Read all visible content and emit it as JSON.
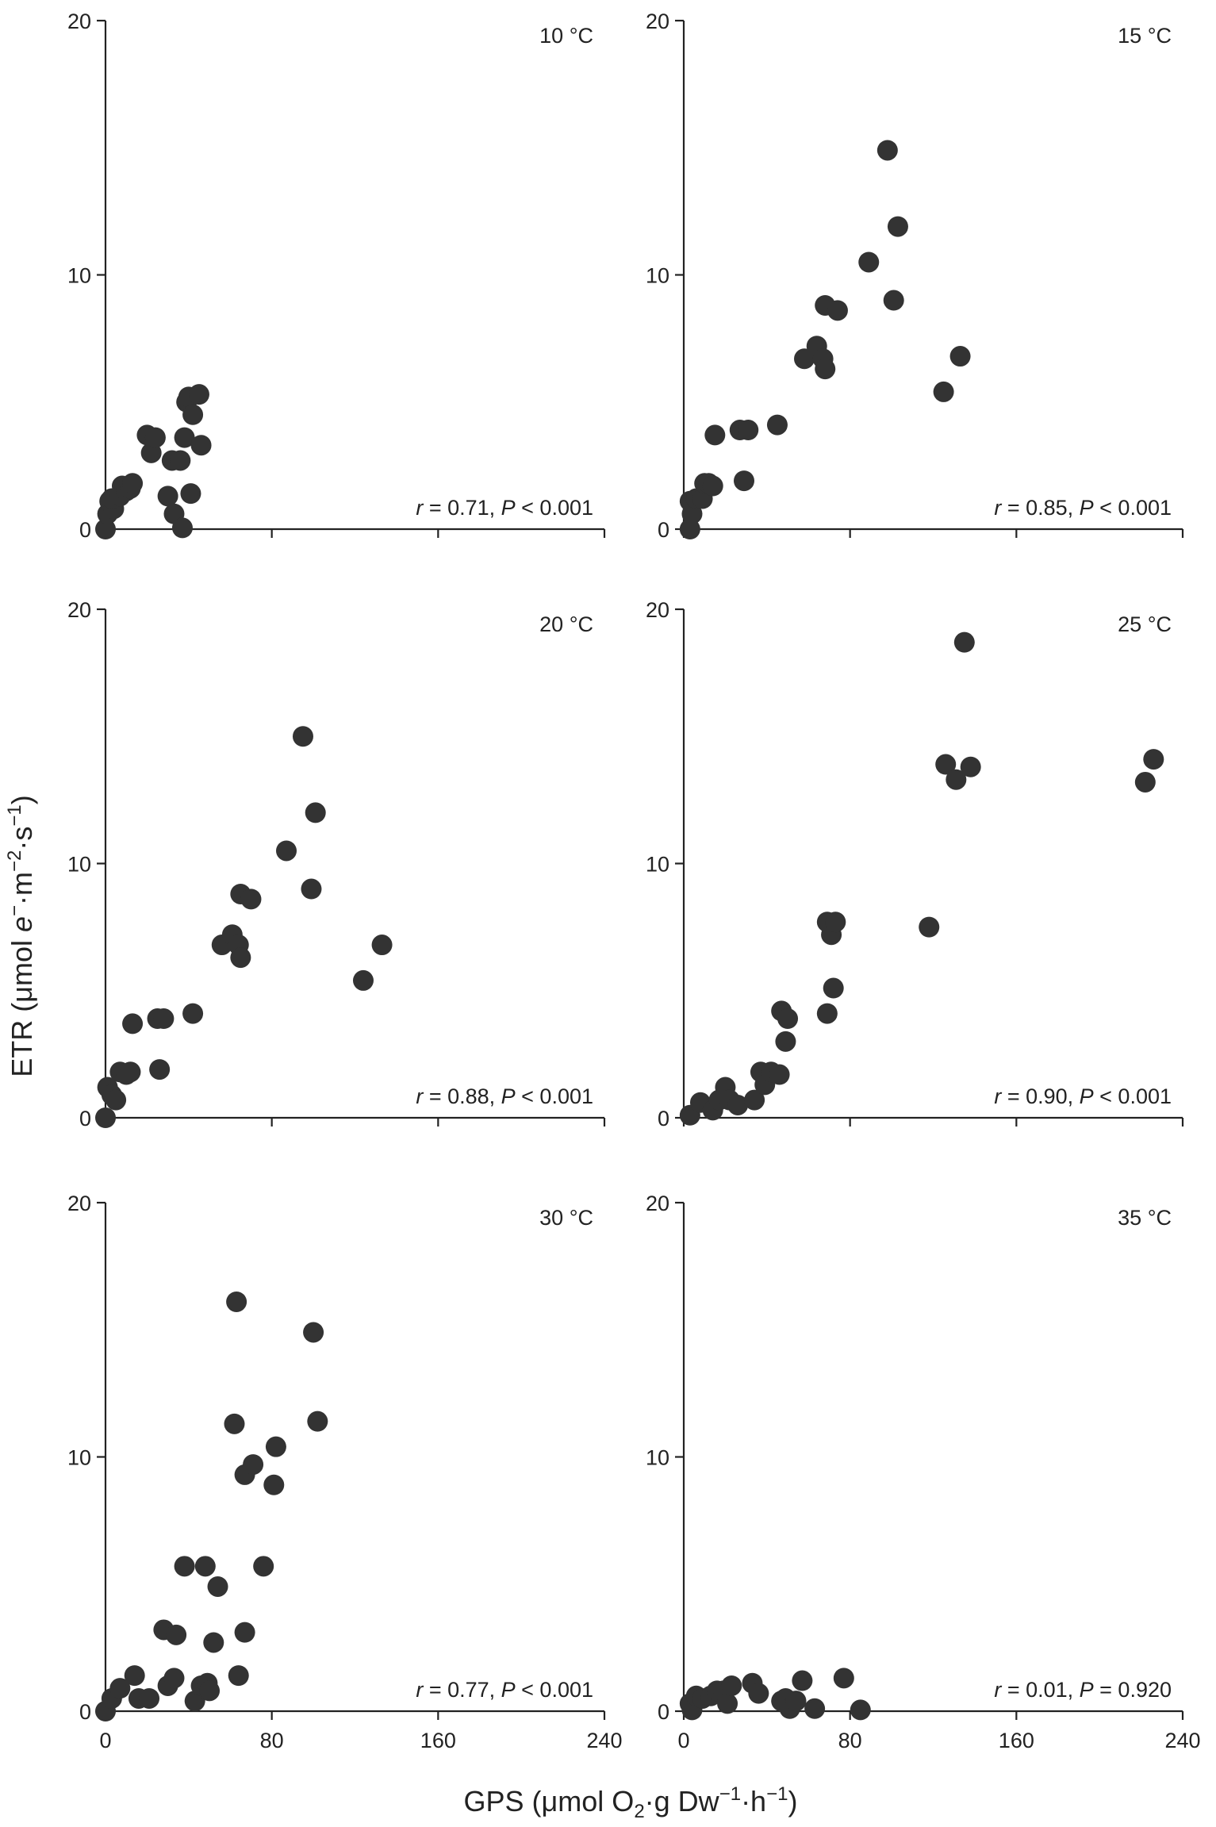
{
  "chart_data": {
    "type": "scatter",
    "layout": "3x2 grid",
    "shared_xlabel": {
      "main": "GPS (μmol O",
      "sub": "2",
      "mid": "·g Dw",
      "sup1": "−1",
      "mid2": "·h",
      "sup2": "−1",
      "end": ")"
    },
    "shared_ylabel": {
      "main": "ETR (μmol ",
      "italic": "e",
      "sup0": "−",
      "mid": "·m",
      "sup1": "−2",
      "mid2": "·s",
      "sup2": "−1",
      "end": ")"
    },
    "xlim": [
      0,
      240
    ],
    "ylim": [
      0,
      20
    ],
    "xticks": [
      0,
      80,
      160,
      240
    ],
    "yticks": [
      0,
      10,
      20
    ],
    "panels": [
      {
        "title": "10 °C",
        "stat": {
          "r_label": "r",
          "r_text": " = 0.71, ",
          "p_label": "P",
          "p_text": " < 0.001"
        },
        "points": [
          [
            0,
            0
          ],
          [
            1,
            0.6
          ],
          [
            2,
            1.1
          ],
          [
            4,
            0.8
          ],
          [
            3,
            1.2
          ],
          [
            7,
            1.3
          ],
          [
            8,
            1.7
          ],
          [
            10,
            1.5
          ],
          [
            12,
            1.6
          ],
          [
            13,
            1.8
          ],
          [
            20,
            3.7
          ],
          [
            22,
            3.0
          ],
          [
            24,
            3.6
          ],
          [
            30,
            1.3
          ],
          [
            32,
            2.7
          ],
          [
            33,
            0.6
          ],
          [
            36,
            2.7
          ],
          [
            37,
            0.05
          ],
          [
            38,
            3.6
          ],
          [
            39,
            5.0
          ],
          [
            40,
            5.2
          ],
          [
            41,
            1.4
          ],
          [
            42,
            4.5
          ],
          [
            45,
            5.3
          ],
          [
            46,
            3.3
          ]
        ]
      },
      {
        "title": "15 °C",
        "stat": {
          "r_label": "r",
          "r_text": " = 0.85, ",
          "p_label": "P",
          "p_text": " < 0.001"
        },
        "points": [
          [
            3,
            0
          ],
          [
            3,
            1.1
          ],
          [
            4,
            0.6
          ],
          [
            6,
            1.2
          ],
          [
            9,
            1.2
          ],
          [
            10,
            1.8
          ],
          [
            12,
            1.8
          ],
          [
            15,
            3.7
          ],
          [
            14,
            1.7
          ],
          [
            27,
            3.9
          ],
          [
            29,
            1.9
          ],
          [
            31,
            3.9
          ],
          [
            45,
            4.1
          ],
          [
            58,
            6.7
          ],
          [
            64,
            7.2
          ],
          [
            67,
            6.7
          ],
          [
            68,
            6.3
          ],
          [
            68,
            8.8
          ],
          [
            74,
            8.6
          ],
          [
            89,
            10.5
          ],
          [
            98,
            14.9
          ],
          [
            101,
            9.0
          ],
          [
            103,
            11.9
          ],
          [
            125,
            5.4
          ],
          [
            133,
            6.8
          ]
        ]
      },
      {
        "title": "20 °C",
        "stat": {
          "r_label": "r",
          "r_text": " = 0.88, ",
          "p_label": "P",
          "p_text": " < 0.001"
        },
        "points": [
          [
            0,
            0
          ],
          [
            1,
            1.2
          ],
          [
            3,
            0.9
          ],
          [
            5,
            0.7
          ],
          [
            7,
            1.8
          ],
          [
            10,
            1.7
          ],
          [
            12,
            1.8
          ],
          [
            13,
            3.7
          ],
          [
            25,
            3.9
          ],
          [
            26,
            1.9
          ],
          [
            28,
            3.9
          ],
          [
            42,
            4.1
          ],
          [
            56,
            6.8
          ],
          [
            61,
            7.2
          ],
          [
            64,
            6.8
          ],
          [
            65,
            6.3
          ],
          [
            65,
            8.8
          ],
          [
            70,
            8.6
          ],
          [
            87,
            10.5
          ],
          [
            95,
            15.0
          ],
          [
            99,
            9.0
          ],
          [
            101,
            12.0
          ],
          [
            124,
            5.4
          ],
          [
            133,
            6.8
          ]
        ]
      },
      {
        "title": "25 °C",
        "stat": {
          "r_label": "r",
          "r_text": " = 0.90, ",
          "p_label": "P",
          "p_text": " < 0.001"
        },
        "points": [
          [
            3,
            0.1
          ],
          [
            8,
            0.6
          ],
          [
            14,
            0.3
          ],
          [
            17,
            0.7
          ],
          [
            20,
            1.2
          ],
          [
            22,
            0.7
          ],
          [
            26,
            0.5
          ],
          [
            34,
            0.7
          ],
          [
            37,
            1.8
          ],
          [
            39,
            1.3
          ],
          [
            42,
            1.8
          ],
          [
            46,
            1.7
          ],
          [
            47,
            4.2
          ],
          [
            49,
            3.0
          ],
          [
            50,
            3.9
          ],
          [
            69,
            4.1
          ],
          [
            69,
            7.7
          ],
          [
            71,
            7.2
          ],
          [
            72,
            5.1
          ],
          [
            73,
            7.7
          ],
          [
            118,
            7.5
          ],
          [
            126,
            13.9
          ],
          [
            131,
            13.3
          ],
          [
            135,
            18.7
          ],
          [
            138,
            13.8
          ],
          [
            222,
            13.2
          ],
          [
            226,
            14.1
          ]
        ]
      },
      {
        "title": "30 °C",
        "stat": {
          "r_label": "r",
          "r_text": " = 0.77, ",
          "p_label": "P",
          "p_text": " < 0.001"
        },
        "points": [
          [
            0,
            0
          ],
          [
            3,
            0.5
          ],
          [
            7,
            0.9
          ],
          [
            14,
            1.4
          ],
          [
            16,
            0.5
          ],
          [
            21,
            0.5
          ],
          [
            28,
            3.2
          ],
          [
            30,
            1.0
          ],
          [
            33,
            1.3
          ],
          [
            34,
            3.0
          ],
          [
            38,
            5.7
          ],
          [
            43,
            0.4
          ],
          [
            46,
            1.0
          ],
          [
            48,
            5.7
          ],
          [
            49,
            1.1
          ],
          [
            50,
            0.8
          ],
          [
            52,
            2.7
          ],
          [
            54,
            4.9
          ],
          [
            62,
            11.3
          ],
          [
            63,
            16.1
          ],
          [
            64,
            1.4
          ],
          [
            67,
            3.1
          ],
          [
            67,
            9.3
          ],
          [
            71,
            9.7
          ],
          [
            76,
            5.7
          ],
          [
            81,
            8.9
          ],
          [
            82,
            10.4
          ],
          [
            100,
            14.9
          ],
          [
            102,
            11.4
          ]
        ]
      },
      {
        "title": "35 °C",
        "stat": {
          "r_label": "r",
          "r_text": " = 0.01, ",
          "p_label": "P",
          "p_text": " = 0.920"
        },
        "points": [
          [
            3,
            0.3
          ],
          [
            4,
            0.05
          ],
          [
            6,
            0.6
          ],
          [
            9,
            0.5
          ],
          [
            13,
            0.6
          ],
          [
            16,
            0.8
          ],
          [
            19,
            0.8
          ],
          [
            21,
            0.3
          ],
          [
            23,
            1.0
          ],
          [
            33,
            1.1
          ],
          [
            36,
            0.7
          ],
          [
            47,
            0.4
          ],
          [
            49,
            0.5
          ],
          [
            51,
            0.1
          ],
          [
            54,
            0.4
          ],
          [
            57,
            1.2
          ],
          [
            63,
            0.1
          ],
          [
            77,
            1.3
          ],
          [
            85,
            0.05
          ]
        ]
      }
    ]
  }
}
